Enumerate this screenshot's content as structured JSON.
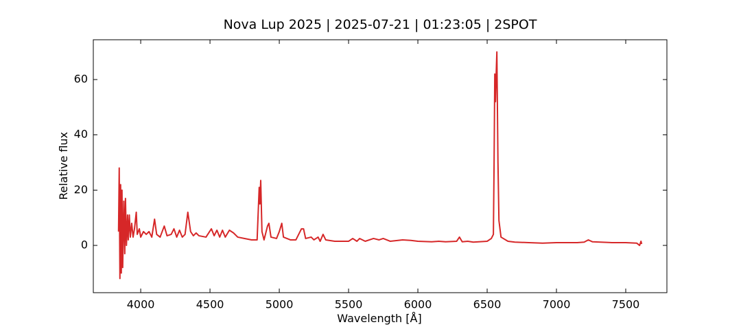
{
  "chart_data": {
    "type": "line",
    "title": "Nova Lup 2025 | 2025-07-21 | 01:23:05 | 2SPOT",
    "xlabel": "Wavelength [Å]",
    "ylabel": "Relative flux",
    "xlim": [
      3658,
      7797
    ],
    "ylim": [
      -17.1,
      74.4
    ],
    "xticks": [
      4000,
      4500,
      5000,
      5500,
      6000,
      6500,
      7000,
      7500
    ],
    "yticks": [
      0,
      20,
      40,
      60
    ],
    "grid": false,
    "x": [
      3840,
      3845,
      3850,
      3855,
      3860,
      3865,
      3870,
      3878,
      3885,
      3890,
      3897,
      3905,
      3910,
      3918,
      3925,
      3935,
      3945,
      3955,
      3968,
      3975,
      3990,
      4000,
      4020,
      4040,
      4060,
      4080,
      4100,
      4115,
      4140,
      4170,
      4190,
      4220,
      4240,
      4260,
      4280,
      4300,
      4320,
      4340,
      4360,
      4380,
      4400,
      4420,
      4471,
      4510,
      4530,
      4550,
      4570,
      4590,
      4610,
      4640,
      4670,
      4700,
      4750,
      4800,
      4840,
      4855,
      4860,
      4866,
      4875,
      4890,
      4915,
      4925,
      4940,
      4980,
      5000,
      5018,
      5030,
      5080,
      5120,
      5160,
      5175,
      5190,
      5230,
      5250,
      5280,
      5295,
      5316,
      5335,
      5400,
      5500,
      5530,
      5560,
      5580,
      5620,
      5680,
      5720,
      5750,
      5800,
      5890,
      5950,
      6000,
      6100,
      6150,
      6200,
      6280,
      6300,
      6320,
      6360,
      6400,
      6500,
      6530,
      6545,
      6550,
      6555,
      6560,
      6565,
      6570,
      6578,
      6585,
      6600,
      6650,
      6700,
      6800,
      6900,
      7000,
      7100,
      7150,
      7200,
      7230,
      7260,
      7400,
      7500,
      7580,
      7600,
      7610,
      7615
    ],
    "series": [
      {
        "name": "Relative flux",
        "color": "#d62728",
        "values": [
          5,
          28,
          -12,
          22,
          -10,
          20,
          -8,
          16,
          -3,
          17,
          0,
          11,
          2,
          11,
          3,
          8,
          3,
          6,
          12,
          4,
          6,
          3,
          5,
          4,
          5,
          3,
          9.5,
          4,
          3,
          7,
          3.5,
          4,
          6,
          3,
          5.5,
          3,
          4,
          12,
          5,
          3.5,
          4.5,
          3.5,
          3,
          6,
          3.5,
          5.5,
          3,
          5.5,
          3,
          5.5,
          4.5,
          3,
          2.5,
          2,
          2,
          21,
          15,
          23.5,
          5,
          2,
          7,
          8,
          3,
          2.5,
          5,
          8,
          3,
          2,
          2,
          6,
          6,
          2.5,
          3,
          2,
          3,
          1.5,
          4,
          2,
          1.5,
          1.5,
          2.5,
          1.5,
          2.5,
          1.5,
          2.5,
          2,
          2.5,
          1.5,
          2,
          1.8,
          1.5,
          1.3,
          1.5,
          1.3,
          1.5,
          3,
          1.3,
          1.5,
          1.2,
          1.5,
          2.5,
          4,
          30,
          62,
          52,
          62,
          70,
          30,
          9,
          3,
          1.5,
          1.2,
          1,
          0.8,
          1,
          1,
          1,
          1.2,
          2,
          1.3,
          1,
          1,
          0.8,
          0,
          1.5,
          0.5
        ]
      }
    ]
  }
}
